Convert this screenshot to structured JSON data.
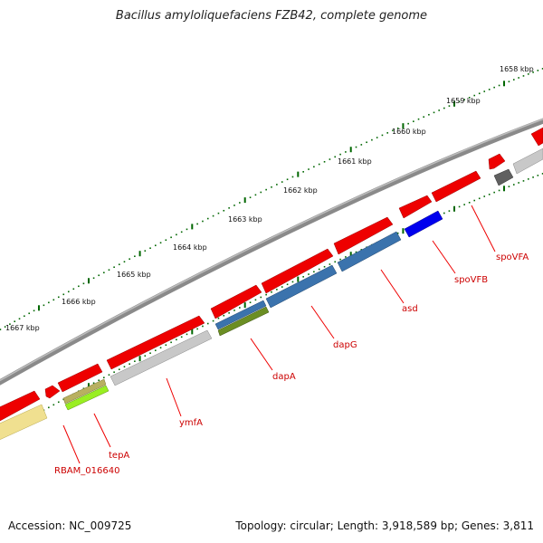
{
  "title": "Bacillus amyloliquefaciens FZB42, complete genome",
  "accession": "Accession: NC_009725",
  "summary": "Topology: circular; Length: 3,918,589 bp; Genes: 3,811",
  "ticks": [
    {
      "label": "1658 kbp"
    },
    {
      "label": "1659 kbp"
    },
    {
      "label": "1660 kbp"
    },
    {
      "label": "1661 kbp"
    },
    {
      "label": "1662 kbp"
    },
    {
      "label": "1663 kbp"
    },
    {
      "label": "1664 kbp"
    },
    {
      "label": "1665 kbp"
    },
    {
      "label": "1666 kbp"
    },
    {
      "label": "1667 kbp"
    }
  ],
  "genes": [
    {
      "name": "spoVFA"
    },
    {
      "name": "spoVFB"
    },
    {
      "name": "asd"
    },
    {
      "name": "dapG"
    },
    {
      "name": "dapA"
    },
    {
      "name": "ymfA"
    },
    {
      "name": "tepA"
    },
    {
      "name": "RBAM_016640"
    }
  ],
  "colors": {
    "backbone": "#888888",
    "cds_forward": "#ee0000",
    "cds_reverse": "#c8c8c8",
    "cog_blue": "#3b73ad",
    "cog_darkblue": "#0000ee",
    "cog_olive": "#6b8e23",
    "cog_lime": "#99ee22",
    "cog_khaki": "#b8b060",
    "cog_yellow": "#f0e090",
    "cog_dark": "#606060",
    "tick": "#006600",
    "label": "#cc0000"
  }
}
